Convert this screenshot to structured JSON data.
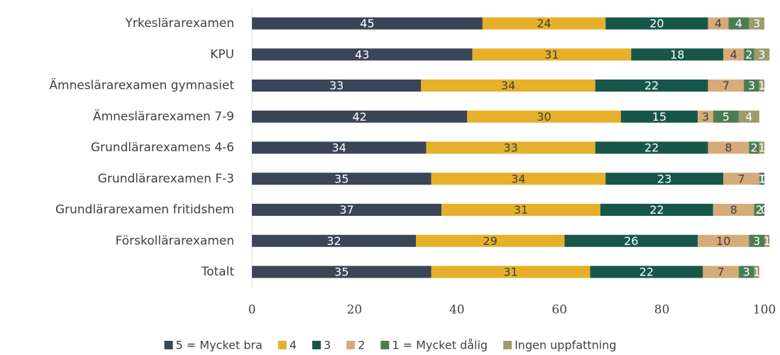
{
  "chart_data": {
    "type": "stacked_bar_horizontal",
    "categories": [
      "Yrkeslärarexamen",
      "KPU",
      "Ämneslärarexamen gymnasiet",
      "Ämneslärarexamen 7-9",
      "Grundlärarexamens 4-6",
      "Grundlärarexamen  F-3",
      "Grundlärarexamen fritidshem",
      "Förskollärarexamen",
      "Totalt"
    ],
    "series": [
      {
        "name": "5 = Mycket bra",
        "color": "#3b4558",
        "values": [
          45,
          43,
          33,
          42,
          34,
          35,
          37,
          32,
          35
        ]
      },
      {
        "name": "4",
        "color": "#e6b02a",
        "values": [
          24,
          31,
          34,
          30,
          33,
          34,
          31,
          29,
          31
        ]
      },
      {
        "name": "3",
        "color": "#17574a",
        "values": [
          20,
          18,
          22,
          15,
          22,
          23,
          22,
          26,
          22
        ]
      },
      {
        "name": "2",
        "color": "#d5ab79",
        "values": [
          4,
          4,
          7,
          3,
          8,
          7,
          8,
          10,
          7
        ]
      },
      {
        "name": "1 = Mycket dålig",
        "color": "#4b7d52",
        "values": [
          4,
          2,
          3,
          5,
          2,
          1,
          2,
          3,
          3
        ]
      },
      {
        "name": "Ingen uppfattning",
        "color": "#9c9b6b",
        "values": [
          3,
          3,
          1,
          4,
          1,
          0,
          0,
          1,
          1
        ]
      }
    ],
    "xlim": [
      0,
      100
    ],
    "xticks": [
      0,
      20,
      40,
      60,
      80,
      100
    ]
  }
}
